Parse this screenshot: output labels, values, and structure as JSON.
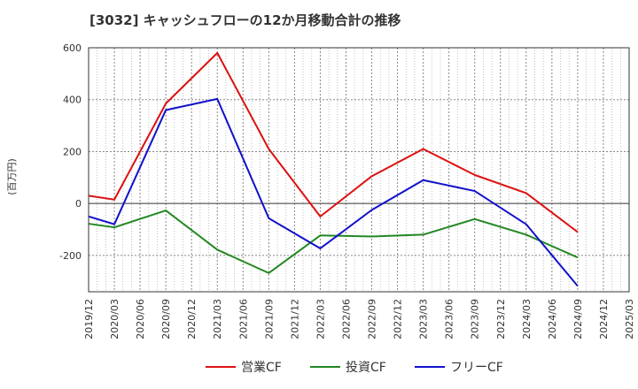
{
  "title": "[3032]  キャッシュフローの12か月移動合計の推移",
  "chart_data": {
    "type": "line",
    "title": "[3032]  キャッシュフローの12か月移動合計の推移",
    "ylabel": "(百万円)",
    "xlabel": "",
    "ylim": [
      -340,
      600
    ],
    "yticks": [
      -200,
      0,
      200,
      400,
      600
    ],
    "grid": true,
    "legend_position": "bottom",
    "x": [
      "2019/12",
      "2020/03",
      "2020/06",
      "2020/09",
      "2020/12",
      "2021/03",
      "2021/06",
      "2021/09",
      "2021/12",
      "2022/03",
      "2022/06",
      "2022/09",
      "2022/12",
      "2023/03",
      "2023/06",
      "2023/09",
      "2023/12",
      "2024/03",
      "2024/06",
      "2024/09",
      "2024/12",
      "2025/03"
    ],
    "series": [
      {
        "name": "営業CF",
        "color": "#dd1111",
        "values": [
          30,
          15,
          null,
          385,
          null,
          580,
          null,
          210,
          null,
          -50,
          null,
          105,
          null,
          210,
          null,
          110,
          null,
          40,
          null,
          -110,
          null,
          null
        ]
      },
      {
        "name": "投資CF",
        "color": "#228822",
        "values": [
          -78,
          -92,
          null,
          -27,
          null,
          -178,
          null,
          -268,
          null,
          -123,
          null,
          -127,
          null,
          -120,
          null,
          -60,
          null,
          -120,
          null,
          -208,
          null,
          null
        ]
      },
      {
        "name": "フリーCF",
        "color": "#1111cc",
        "values": [
          -50,
          -80,
          null,
          360,
          null,
          403,
          null,
          -57,
          null,
          -173,
          null,
          -25,
          null,
          90,
          null,
          48,
          null,
          -80,
          null,
          -318,
          null,
          null
        ]
      }
    ]
  }
}
